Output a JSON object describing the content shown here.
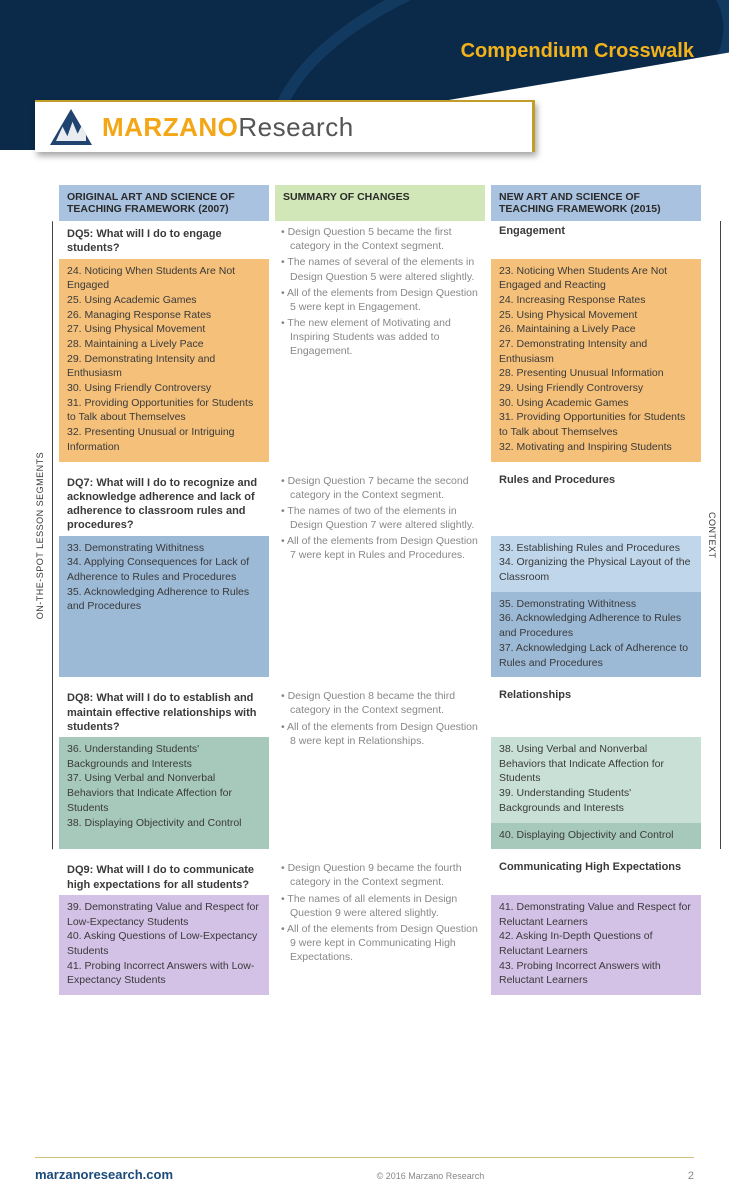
{
  "header": {
    "title": "Compendium Crosswalk"
  },
  "logo": {
    "bold": "MARZANO",
    "light": "Research"
  },
  "columns": {
    "left_head": "ORIGINAL ART AND SCIENCE OF TEACHING FRAMEWORK (2007)",
    "mid_head": "SUMMARY OF CHANGES",
    "right_head": "NEW ART AND SCIENCE OF TEACHING FRAMEWORK (2015)"
  },
  "side": {
    "left": "ON-THE-SPOT LESSON SEGMENTS",
    "right": "CONTEXT"
  },
  "rows": [
    {
      "dq": "DQ5: What will I do to engage students?",
      "left_color": "c-orange",
      "left_items": "24. Noticing When Students Are Not Engaged\n25. Using Academic Games\n26. Managing Response Rates\n27. Using Physical Movement\n28. Maintaining a Lively Pace\n29. Demonstrating Intensity and Enthusiasm\n30. Using Friendly Controversy\n31. Providing Opportunities for Students to Talk about Themselves\n32. Presenting Unusual or Intriguing Information",
      "changes": [
        "• Design Question 5 became the first category in the Context segment.",
        "• The names of several of the elements in Design Question 5 were altered slightly.",
        "• All of the elements from Design Question 5 were kept in Engagement.",
        "• The new element of Motivating and Inspiring Students was added to Engagement."
      ],
      "cat": "Engagement",
      "right": [
        {
          "color": "c-orange",
          "text": "23. Noticing When Students Are Not Engaged and Reacting\n24. Increasing Response Rates\n25. Using Physical Movement\n26. Maintaining a Lively Pace\n27. Demonstrating Intensity and Enthusiasm\n28. Presenting Unusual Information\n29. Using Friendly Controversy\n30. Using Academic Games\n31. Providing Opportunities for Students to Talk about Themselves\n32. Motivating and Inspiring Students"
        }
      ]
    },
    {
      "dq": "DQ7: What will I do to recognize and acknowledge adherence and lack of adherence to classroom rules and procedures?",
      "left_color": "c-blue",
      "left_items": "33. Demonstrating Withitness\n34. Applying Consequences for Lack of Adherence to Rules and Procedures\n35. Acknowledging Adherence to Rules and Procedures",
      "changes": [
        "• Design Question 7 became the second category in the Context segment.",
        "• The names of two of the elements in Design Question 7 were altered slightly.",
        "• All of the elements from Design Question 7 were kept in Rules and Procedures."
      ],
      "cat": "Rules and Procedures",
      "right": [
        {
          "color": "c-blueL",
          "text": "33. Establishing Rules and Procedures\n34. Organizing the Physical Layout of the Classroom"
        },
        {
          "color": "c-blue",
          "text": "35. Demonstrating Withitness\n36. Acknowledging Adherence to Rules and Procedures\n37. Acknowledging Lack of Adherence to Rules and Procedures"
        }
      ]
    },
    {
      "dq": "DQ8: What will I do to establish and maintain effective relationships with students?",
      "left_color": "c-teal",
      "left_items": "36. Understanding Students' Backgrounds and Interests\n37. Using Verbal and Nonverbal Behaviors that Indicate Affection for Students\n38. Displaying Objectivity and Control",
      "changes": [
        "• Design Question 8 became the third category in the Context segment.",
        "• All of the elements from Design Question 8 were kept in Relationships."
      ],
      "cat": "Relationships",
      "right": [
        {
          "color": "c-tealL",
          "text": "38. Using Verbal and Nonverbal Behaviors that Indicate Affection for Students\n39. Understanding Students' Backgrounds and Interests"
        },
        {
          "color": "c-teal",
          "text": "40. Displaying Objectivity and Control"
        }
      ]
    },
    {
      "dq": "DQ9: What will I do to communicate high expectations for all students?",
      "left_color": "c-purple",
      "left_items": "39. Demonstrating Value and Respect for Low-Expectancy Students\n40. Asking Questions of Low-Expectancy Students\n41. Probing Incorrect Answers with Low-Expectancy Students",
      "changes": [
        "• Design Question 9 became the fourth category in the Context segment.",
        "• The names of all elements in Design Question 9 were altered slightly.",
        "• All of the elements from Design Question 9 were kept in Communicating High Expectations."
      ],
      "cat": "Communicating High Expectations",
      "right": [
        {
          "color": "c-purple",
          "text": "41. Demonstrating Value and Respect for Reluctant Learners\n42. Asking In-Depth Questions of Reluctant Learners\n43. Probing Incorrect Answers with Reluctant Learners"
        }
      ]
    }
  ],
  "footer": {
    "site": "marzanoresearch.com",
    "copy": "© 2016 Marzano Research",
    "page": "2"
  }
}
